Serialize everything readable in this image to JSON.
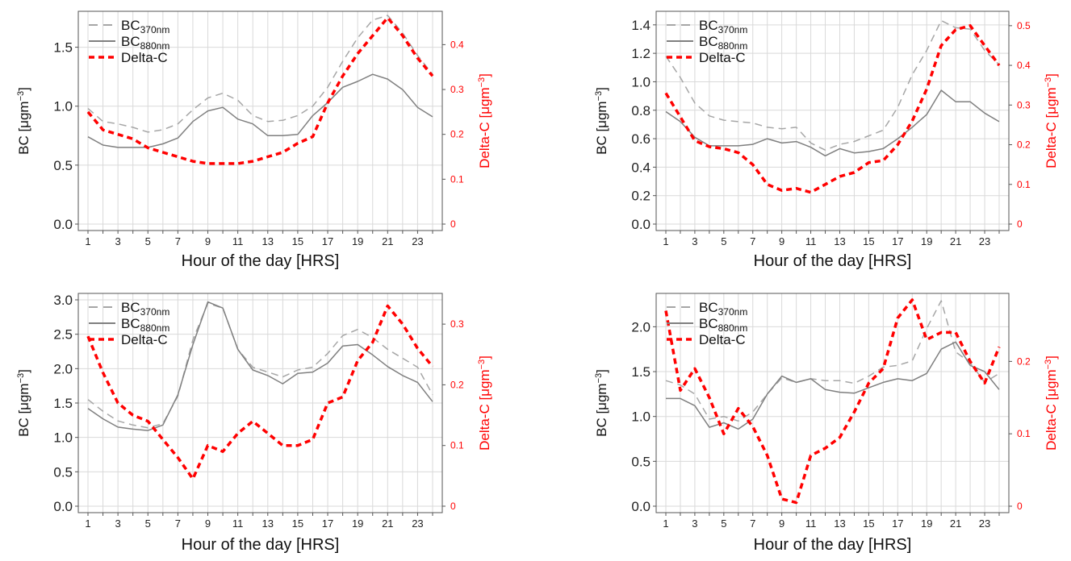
{
  "chart_data": [
    {
      "type": "line",
      "xlabel": "Hour of the day [HRS]",
      "ylabel": "BC",
      "ylabel_unit": "[μgm",
      "ylabel_unit_exp": "−3",
      "y2label": "Delta-C",
      "y2label_unit": "[μgm",
      "y2label_unit_exp": "−3",
      "x": [
        1,
        2,
        3,
        4,
        5,
        6,
        7,
        8,
        9,
        10,
        11,
        12,
        13,
        14,
        15,
        16,
        17,
        18,
        19,
        20,
        21,
        22,
        23,
        24
      ],
      "xticks": [
        1,
        3,
        5,
        7,
        9,
        11,
        13,
        15,
        17,
        19,
        21,
        23
      ],
      "ylim": [
        0,
        1.75
      ],
      "yticks": [
        "0.0",
        "0.5",
        "1.0",
        "1.5"
      ],
      "y2lim": [
        0,
        0.46
      ],
      "y2ticks": [
        "0",
        "0.1",
        "0.2",
        "0.3",
        "0.4"
      ],
      "grid": true,
      "legend_position": "top-left",
      "series": [
        {
          "name": "BC",
          "name_sub": "370nm",
          "axis": "left",
          "color": "#a6a6a6",
          "dash": "9,6",
          "values": [
            0.98,
            0.87,
            0.85,
            0.82,
            0.78,
            0.8,
            0.85,
            0.97,
            1.07,
            1.11,
            1.05,
            0.92,
            0.87,
            0.88,
            0.92,
            1.0,
            1.16,
            1.38,
            1.58,
            1.73,
            1.77,
            1.62,
            1.43,
            1.27
          ]
        },
        {
          "name": "BC",
          "name_sub": "880nm",
          "axis": "left",
          "color": "#7f7f7f",
          "dash": "",
          "values": [
            0.74,
            0.67,
            0.65,
            0.65,
            0.65,
            0.68,
            0.73,
            0.87,
            0.96,
            0.99,
            0.89,
            0.85,
            0.75,
            0.75,
            0.76,
            0.92,
            1.03,
            1.16,
            1.21,
            1.27,
            1.23,
            1.14,
            0.99,
            0.91
          ]
        },
        {
          "name": "Delta-C",
          "name_sub": "",
          "axis": "right",
          "color": "#ff0000",
          "dash": "7,5",
          "values": [
            0.25,
            0.21,
            0.2,
            0.19,
            0.17,
            0.16,
            0.15,
            0.14,
            0.135,
            0.135,
            0.135,
            0.14,
            0.15,
            0.16,
            0.18,
            0.195,
            0.27,
            0.33,
            0.38,
            0.42,
            0.46,
            0.42,
            0.37,
            0.33
          ]
        }
      ]
    },
    {
      "type": "line",
      "xlabel": "Hour of the day [HRS]",
      "ylabel": "BC",
      "ylabel_unit": "[μgm",
      "ylabel_unit_exp": "−3",
      "y2label": "Delta-C",
      "y2label_unit": "[μgm",
      "y2label_unit_exp": "−3",
      "x": [
        1,
        2,
        3,
        4,
        5,
        6,
        7,
        8,
        9,
        10,
        11,
        12,
        13,
        14,
        15,
        16,
        17,
        18,
        19,
        20,
        21,
        22,
        23,
        24
      ],
      "xticks": [
        1,
        3,
        5,
        7,
        9,
        11,
        13,
        15,
        17,
        19,
        21,
        23
      ],
      "ylim": [
        0,
        1.45
      ],
      "yticks": [
        "0.0",
        "0.2",
        "0.4",
        "0.6",
        "0.8",
        "1.0",
        "1.2",
        "1.4"
      ],
      "y2lim": [
        0,
        0.52
      ],
      "y2ticks": [
        "0",
        "0.1",
        "0.2",
        "0.3",
        "0.4",
        "0.5"
      ],
      "grid": true,
      "legend_position": "top-left",
      "series": [
        {
          "name": "BC",
          "name_sub": "370nm",
          "axis": "left",
          "color": "#a6a6a6",
          "dash": "9,6",
          "values": [
            1.18,
            1.03,
            0.85,
            0.76,
            0.73,
            0.72,
            0.71,
            0.68,
            0.67,
            0.68,
            0.57,
            0.52,
            0.56,
            0.58,
            0.62,
            0.66,
            0.82,
            1.05,
            1.22,
            1.43,
            1.38,
            1.37,
            1.22,
            1.12
          ]
        },
        {
          "name": "BC",
          "name_sub": "880nm",
          "axis": "left",
          "color": "#7f7f7f",
          "dash": "",
          "values": [
            0.79,
            0.72,
            0.61,
            0.55,
            0.55,
            0.55,
            0.56,
            0.6,
            0.57,
            0.58,
            0.54,
            0.48,
            0.53,
            0.5,
            0.51,
            0.53,
            0.6,
            0.68,
            0.77,
            0.94,
            0.86,
            0.86,
            0.78,
            0.72
          ]
        },
        {
          "name": "Delta-C",
          "name_sub": "",
          "axis": "right",
          "color": "#ff0000",
          "dash": "7,5",
          "values": [
            0.33,
            0.27,
            0.21,
            0.195,
            0.19,
            0.18,
            0.15,
            0.1,
            0.085,
            0.09,
            0.08,
            0.1,
            0.12,
            0.13,
            0.155,
            0.16,
            0.2,
            0.26,
            0.34,
            0.45,
            0.49,
            0.5,
            0.45,
            0.4
          ]
        }
      ]
    },
    {
      "type": "line",
      "xlabel": "Hour of the day [HRS]",
      "ylabel": "BC",
      "ylabel_unit": "[μgm",
      "ylabel_unit_exp": "−3",
      "y2label": "Delta-C",
      "y2label_unit": "[μgm",
      "y2label_unit_exp": "−3",
      "x": [
        1,
        2,
        3,
        4,
        5,
        6,
        7,
        8,
        9,
        10,
        11,
        12,
        13,
        14,
        15,
        16,
        17,
        18,
        19,
        20,
        21,
        22,
        23,
        24
      ],
      "xticks": [
        1,
        3,
        5,
        7,
        9,
        11,
        13,
        15,
        17,
        19,
        21,
        23
      ],
      "ylim": [
        0,
        3.0
      ],
      "yticks": [
        "0.0",
        "0.5",
        "1.0",
        "1.5",
        "2.0",
        "2.5",
        "3.0"
      ],
      "y2lim": [
        0,
        0.34
      ],
      "y2ticks": [
        "0",
        "0.1",
        "0.2",
        "0.3"
      ],
      "grid": true,
      "legend_position": "top-left",
      "series": [
        {
          "name": "BC",
          "name_sub": "370nm",
          "axis": "left",
          "color": "#a6a6a6",
          "dash": "9,6",
          "values": [
            1.55,
            1.38,
            1.24,
            1.18,
            1.14,
            1.2,
            1.6,
            2.42,
            2.95,
            2.88,
            2.28,
            2.02,
            1.95,
            1.88,
            1.98,
            2.02,
            2.22,
            2.48,
            2.57,
            2.45,
            2.28,
            2.15,
            2.02,
            1.62
          ]
        },
        {
          "name": "BC",
          "name_sub": "880nm",
          "axis": "left",
          "color": "#7f7f7f",
          "dash": "",
          "values": [
            1.42,
            1.27,
            1.15,
            1.12,
            1.1,
            1.18,
            1.62,
            2.35,
            2.97,
            2.88,
            2.28,
            1.98,
            1.9,
            1.78,
            1.93,
            1.95,
            2.08,
            2.33,
            2.35,
            2.2,
            2.03,
            1.9,
            1.8,
            1.52
          ]
        },
        {
          "name": "Delta-C",
          "name_sub": "",
          "axis": "right",
          "color": "#ff0000",
          "dash": "7,5",
          "values": [
            0.28,
            0.22,
            0.17,
            0.15,
            0.14,
            0.11,
            0.08,
            0.045,
            0.1,
            0.09,
            0.12,
            0.14,
            0.12,
            0.1,
            0.1,
            0.11,
            0.17,
            0.18,
            0.24,
            0.27,
            0.33,
            0.3,
            0.26,
            0.23
          ]
        }
      ]
    },
    {
      "type": "line",
      "xlabel": "Hour of the day [HRS]",
      "ylabel": "BC",
      "ylabel_unit": "[μgm",
      "ylabel_unit_exp": "−3",
      "y2label": "Delta-C",
      "y2label_unit": "[μgm",
      "y2label_unit_exp": "−3",
      "x": [
        1,
        2,
        3,
        4,
        5,
        6,
        7,
        8,
        9,
        10,
        11,
        12,
        13,
        14,
        15,
        16,
        17,
        18,
        19,
        20,
        21,
        22,
        23,
        24
      ],
      "xticks": [
        1,
        3,
        5,
        7,
        9,
        11,
        13,
        15,
        17,
        19,
        21,
        23
      ],
      "ylim": [
        0,
        2.3
      ],
      "yticks": [
        "0.0",
        "0.5",
        "1.0",
        "1.5",
        "2.0"
      ],
      "y2lim": [
        0,
        0.285
      ],
      "y2ticks": [
        "0",
        "0.1",
        "0.2"
      ],
      "grid": true,
      "legend_position": "top-left",
      "series": [
        {
          "name": "BC",
          "name_sub": "370nm",
          "axis": "left",
          "color": "#a6a6a6",
          "dash": "9,6",
          "values": [
            1.4,
            1.35,
            1.25,
            0.97,
            1.0,
            0.95,
            1.05,
            1.25,
            1.43,
            1.38,
            1.42,
            1.4,
            1.4,
            1.37,
            1.45,
            1.55,
            1.57,
            1.62,
            1.98,
            2.29,
            1.72,
            1.6,
            1.38,
            1.48
          ]
        },
        {
          "name": "BC",
          "name_sub": "880nm",
          "axis": "left",
          "color": "#7f7f7f",
          "dash": "",
          "values": [
            1.2,
            1.2,
            1.12,
            0.88,
            0.93,
            0.86,
            0.97,
            1.25,
            1.45,
            1.38,
            1.42,
            1.3,
            1.27,
            1.26,
            1.32,
            1.38,
            1.42,
            1.4,
            1.48,
            1.75,
            1.83,
            1.57,
            1.5,
            1.3
          ]
        },
        {
          "name": "Delta-C",
          "name_sub": "",
          "axis": "right",
          "color": "#ff0000",
          "dash": "7,5",
          "values": [
            0.27,
            0.16,
            0.19,
            0.15,
            0.1,
            0.135,
            0.11,
            0.07,
            0.01,
            0.005,
            0.07,
            0.08,
            0.095,
            0.13,
            0.17,
            0.19,
            0.26,
            0.285,
            0.23,
            0.24,
            0.24,
            0.2,
            0.17,
            0.22
          ]
        }
      ]
    }
  ]
}
